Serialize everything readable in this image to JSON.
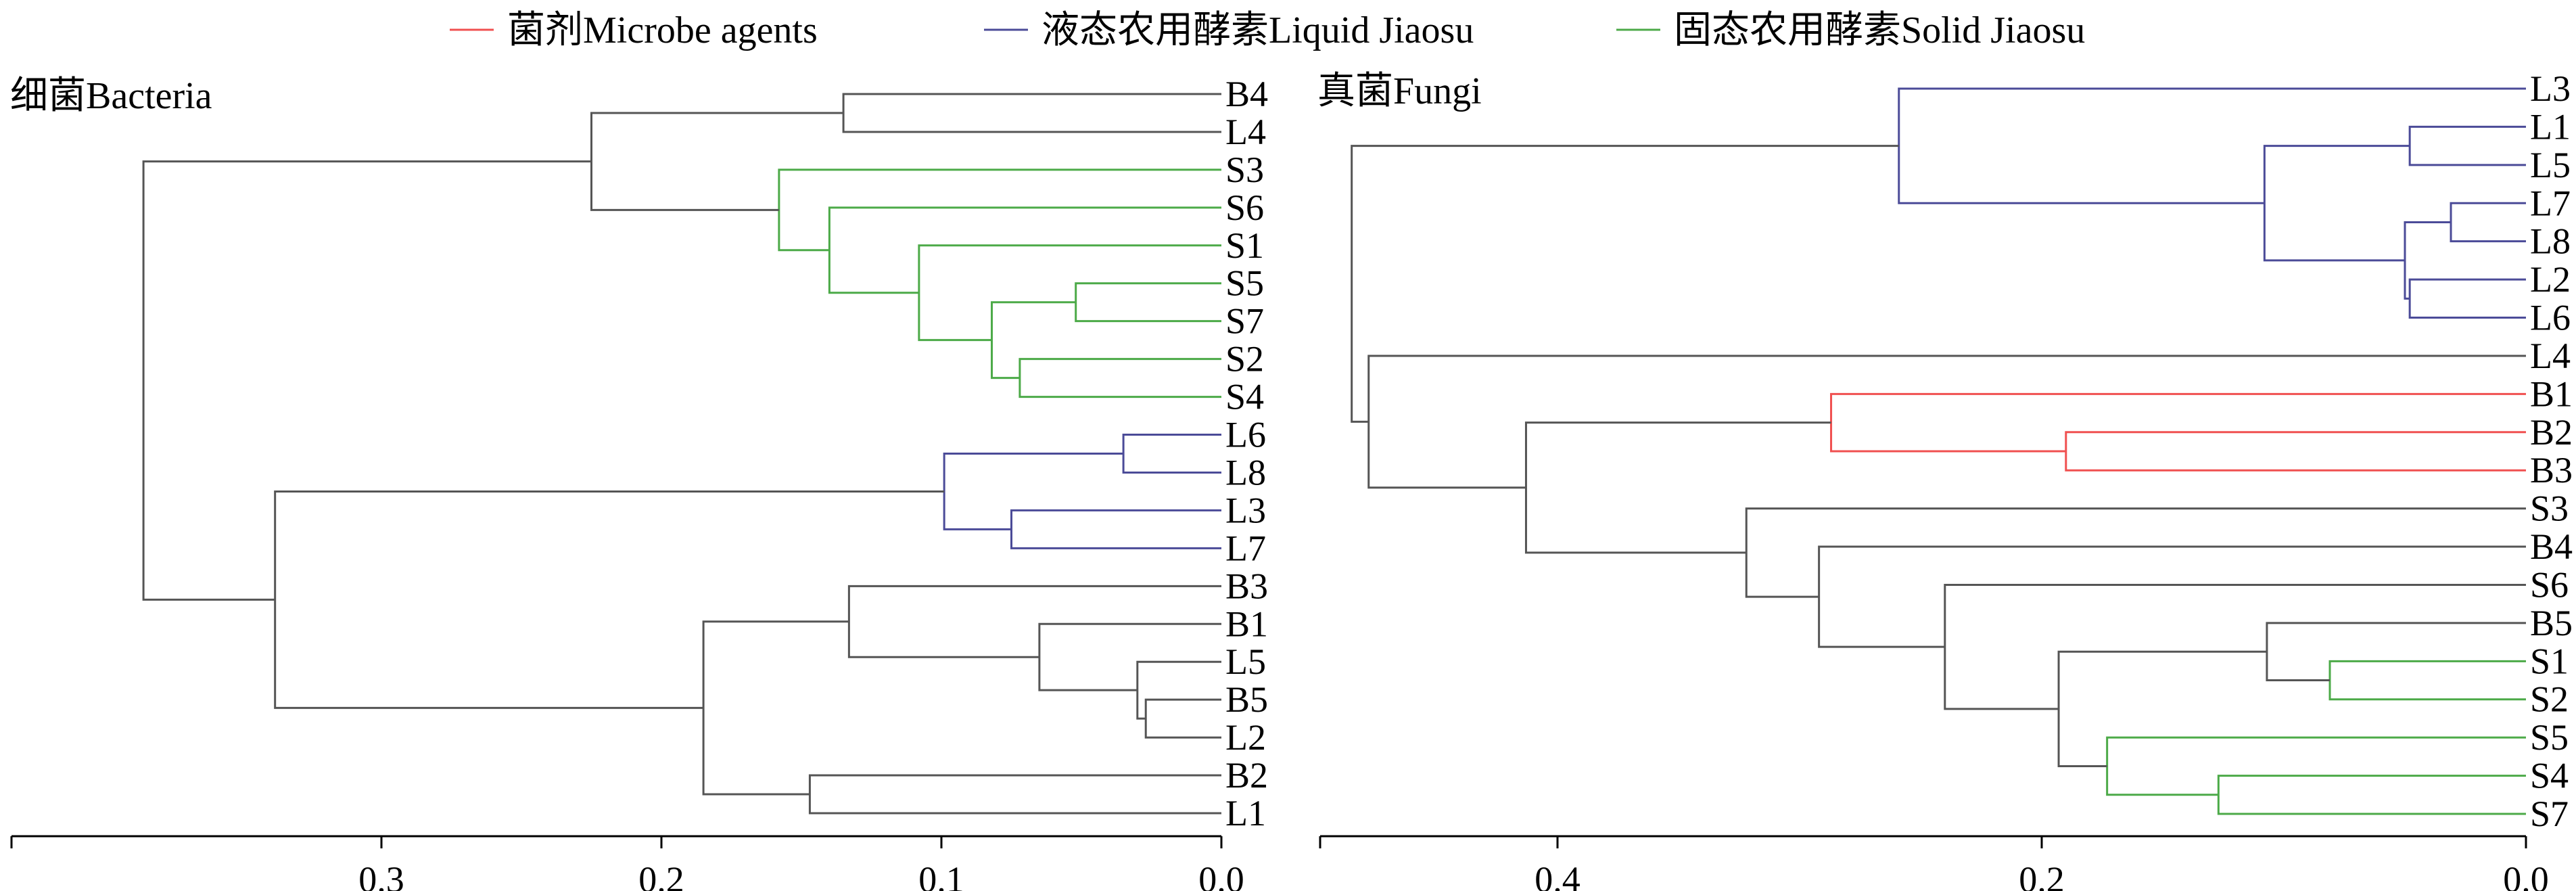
{
  "legend": [
    {
      "label": "菌剂Microbe agents",
      "color": "#f05050"
    },
    {
      "label": "液态农用酵素Liquid Jiaosu",
      "color": "#4b4b98"
    },
    {
      "label": "固态农用酵素Solid Jiaosu",
      "color": "#4caa48"
    }
  ],
  "colors": {
    "B": "#f05050",
    "L": "#4b4b98",
    "S": "#4caa48",
    "mixed": "#555555",
    "axis": "#000000"
  },
  "chart_data": [
    {
      "type": "dendrogram",
      "title": "细菌Bacteria",
      "xlim": [
        0.0,
        0.335
      ],
      "xticks": [
        0.3,
        0.2,
        0.1,
        0.0
      ],
      "tick_labels": [
        "0.3",
        "0.2",
        "0.1",
        "0.0"
      ],
      "leaves": [
        "B4",
        "L4",
        "S3",
        "S6",
        "S1",
        "S5",
        "S7",
        "S2",
        "S4",
        "L6",
        "L8",
        "L3",
        "L7",
        "B3",
        "B1",
        "L5",
        "B5",
        "L2",
        "B2",
        "L1"
      ],
      "merges": [
        {
          "id": "b1",
          "a": "B4",
          "b": "L4",
          "height": 0.135
        },
        {
          "id": "b2",
          "a": "S5",
          "b": "S7",
          "height": 0.052
        },
        {
          "id": "b3",
          "a": "S2",
          "b": "S4",
          "height": 0.072
        },
        {
          "id": "b4",
          "a": "b2",
          "b": "b3",
          "height": 0.082
        },
        {
          "id": "b5",
          "a": "S1",
          "b": "b4",
          "height": 0.108
        },
        {
          "id": "b6",
          "a": "S6",
          "b": "b5",
          "height": 0.14
        },
        {
          "id": "b7",
          "a": "S3",
          "b": "b6",
          "height": 0.158
        },
        {
          "id": "b8",
          "a": "b1",
          "b": "b7",
          "height": 0.225
        },
        {
          "id": "b9",
          "a": "L6",
          "b": "L8",
          "height": 0.035
        },
        {
          "id": "b10",
          "a": "L3",
          "b": "L7",
          "height": 0.075
        },
        {
          "id": "b11",
          "a": "b9",
          "b": "b10",
          "height": 0.099
        },
        {
          "id": "b12",
          "a": "B5",
          "b": "L2",
          "height": 0.027
        },
        {
          "id": "b13",
          "a": "L5",
          "b": "b12",
          "height": 0.03
        },
        {
          "id": "b14",
          "a": "B1",
          "b": "b13",
          "height": 0.065
        },
        {
          "id": "b15",
          "a": "B3",
          "b": "b14",
          "height": 0.133
        },
        {
          "id": "b16",
          "a": "B2",
          "b": "L1",
          "height": 0.147
        },
        {
          "id": "b17",
          "a": "b15",
          "b": "b16",
          "height": 0.185
        },
        {
          "id": "b18",
          "a": "b11",
          "b": "b17",
          "height": 0.338
        },
        {
          "id": "b19",
          "a": "b8",
          "b": "b18",
          "height": 0.385
        }
      ]
    },
    {
      "type": "dendrogram",
      "title": "真菌Fungi",
      "xlim": [
        0.0,
        0.48
      ],
      "xticks": [
        0.4,
        0.2,
        0.0
      ],
      "tick_labels": [
        "0.4",
        "0.2",
        "0.0"
      ],
      "leaves": [
        "L3",
        "L1",
        "L5",
        "L7",
        "L8",
        "L2",
        "L6",
        "L4",
        "B1",
        "B2",
        "B3",
        "S3",
        "B4",
        "S6",
        "B5",
        "S1",
        "S2",
        "S5",
        "S4",
        "S7"
      ],
      "merges": [
        {
          "id": "f1",
          "a": "L1",
          "b": "L5",
          "height": 0.048
        },
        {
          "id": "f2",
          "a": "L7",
          "b": "L8",
          "height": 0.031
        },
        {
          "id": "f3",
          "a": "L2",
          "b": "L6",
          "height": 0.048
        },
        {
          "id": "f4",
          "a": "f2",
          "b": "f3",
          "height": 0.05
        },
        {
          "id": "f5",
          "a": "f1",
          "b": "f4",
          "height": 0.108
        },
        {
          "id": "f6",
          "a": "L3",
          "b": "f5",
          "height": 0.259
        },
        {
          "id": "f7",
          "a": "B2",
          "b": "B3",
          "height": 0.19
        },
        {
          "id": "f8",
          "a": "B1",
          "b": "f7",
          "height": 0.287
        },
        {
          "id": "f9",
          "a": "S1",
          "b": "S2",
          "height": 0.081
        },
        {
          "id": "f10",
          "a": "B5",
          "b": "f9",
          "height": 0.107
        },
        {
          "id": "f11",
          "a": "S4",
          "b": "S7",
          "height": 0.127
        },
        {
          "id": "f12",
          "a": "S5",
          "b": "f11",
          "height": 0.173
        },
        {
          "id": "f13",
          "a": "f10",
          "b": "f12",
          "height": 0.193
        },
        {
          "id": "f14",
          "a": "S6",
          "b": "f13",
          "height": 0.24
        },
        {
          "id": "f15",
          "a": "B4",
          "b": "f14",
          "height": 0.292
        },
        {
          "id": "f16",
          "a": "S3",
          "b": "f15",
          "height": 0.322
        },
        {
          "id": "f17",
          "a": "f8",
          "b": "f16",
          "height": 0.413
        },
        {
          "id": "f18",
          "a": "L4",
          "b": "f17",
          "height": 0.478
        },
        {
          "id": "f19",
          "a": "f6",
          "b": "f18",
          "height": 0.485
        }
      ]
    }
  ]
}
